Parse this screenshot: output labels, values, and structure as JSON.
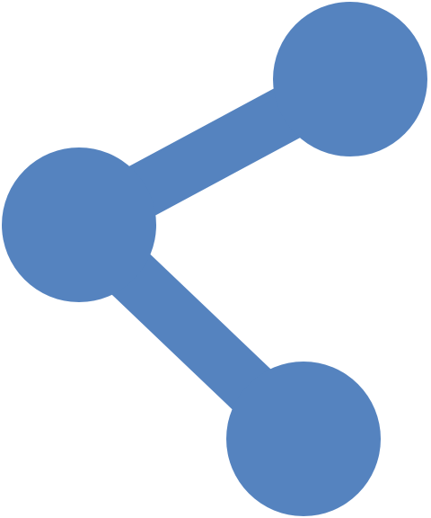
{
  "icon": {
    "name": "share-icon",
    "color": "#5583BF",
    "background": "#FFFFFF"
  }
}
